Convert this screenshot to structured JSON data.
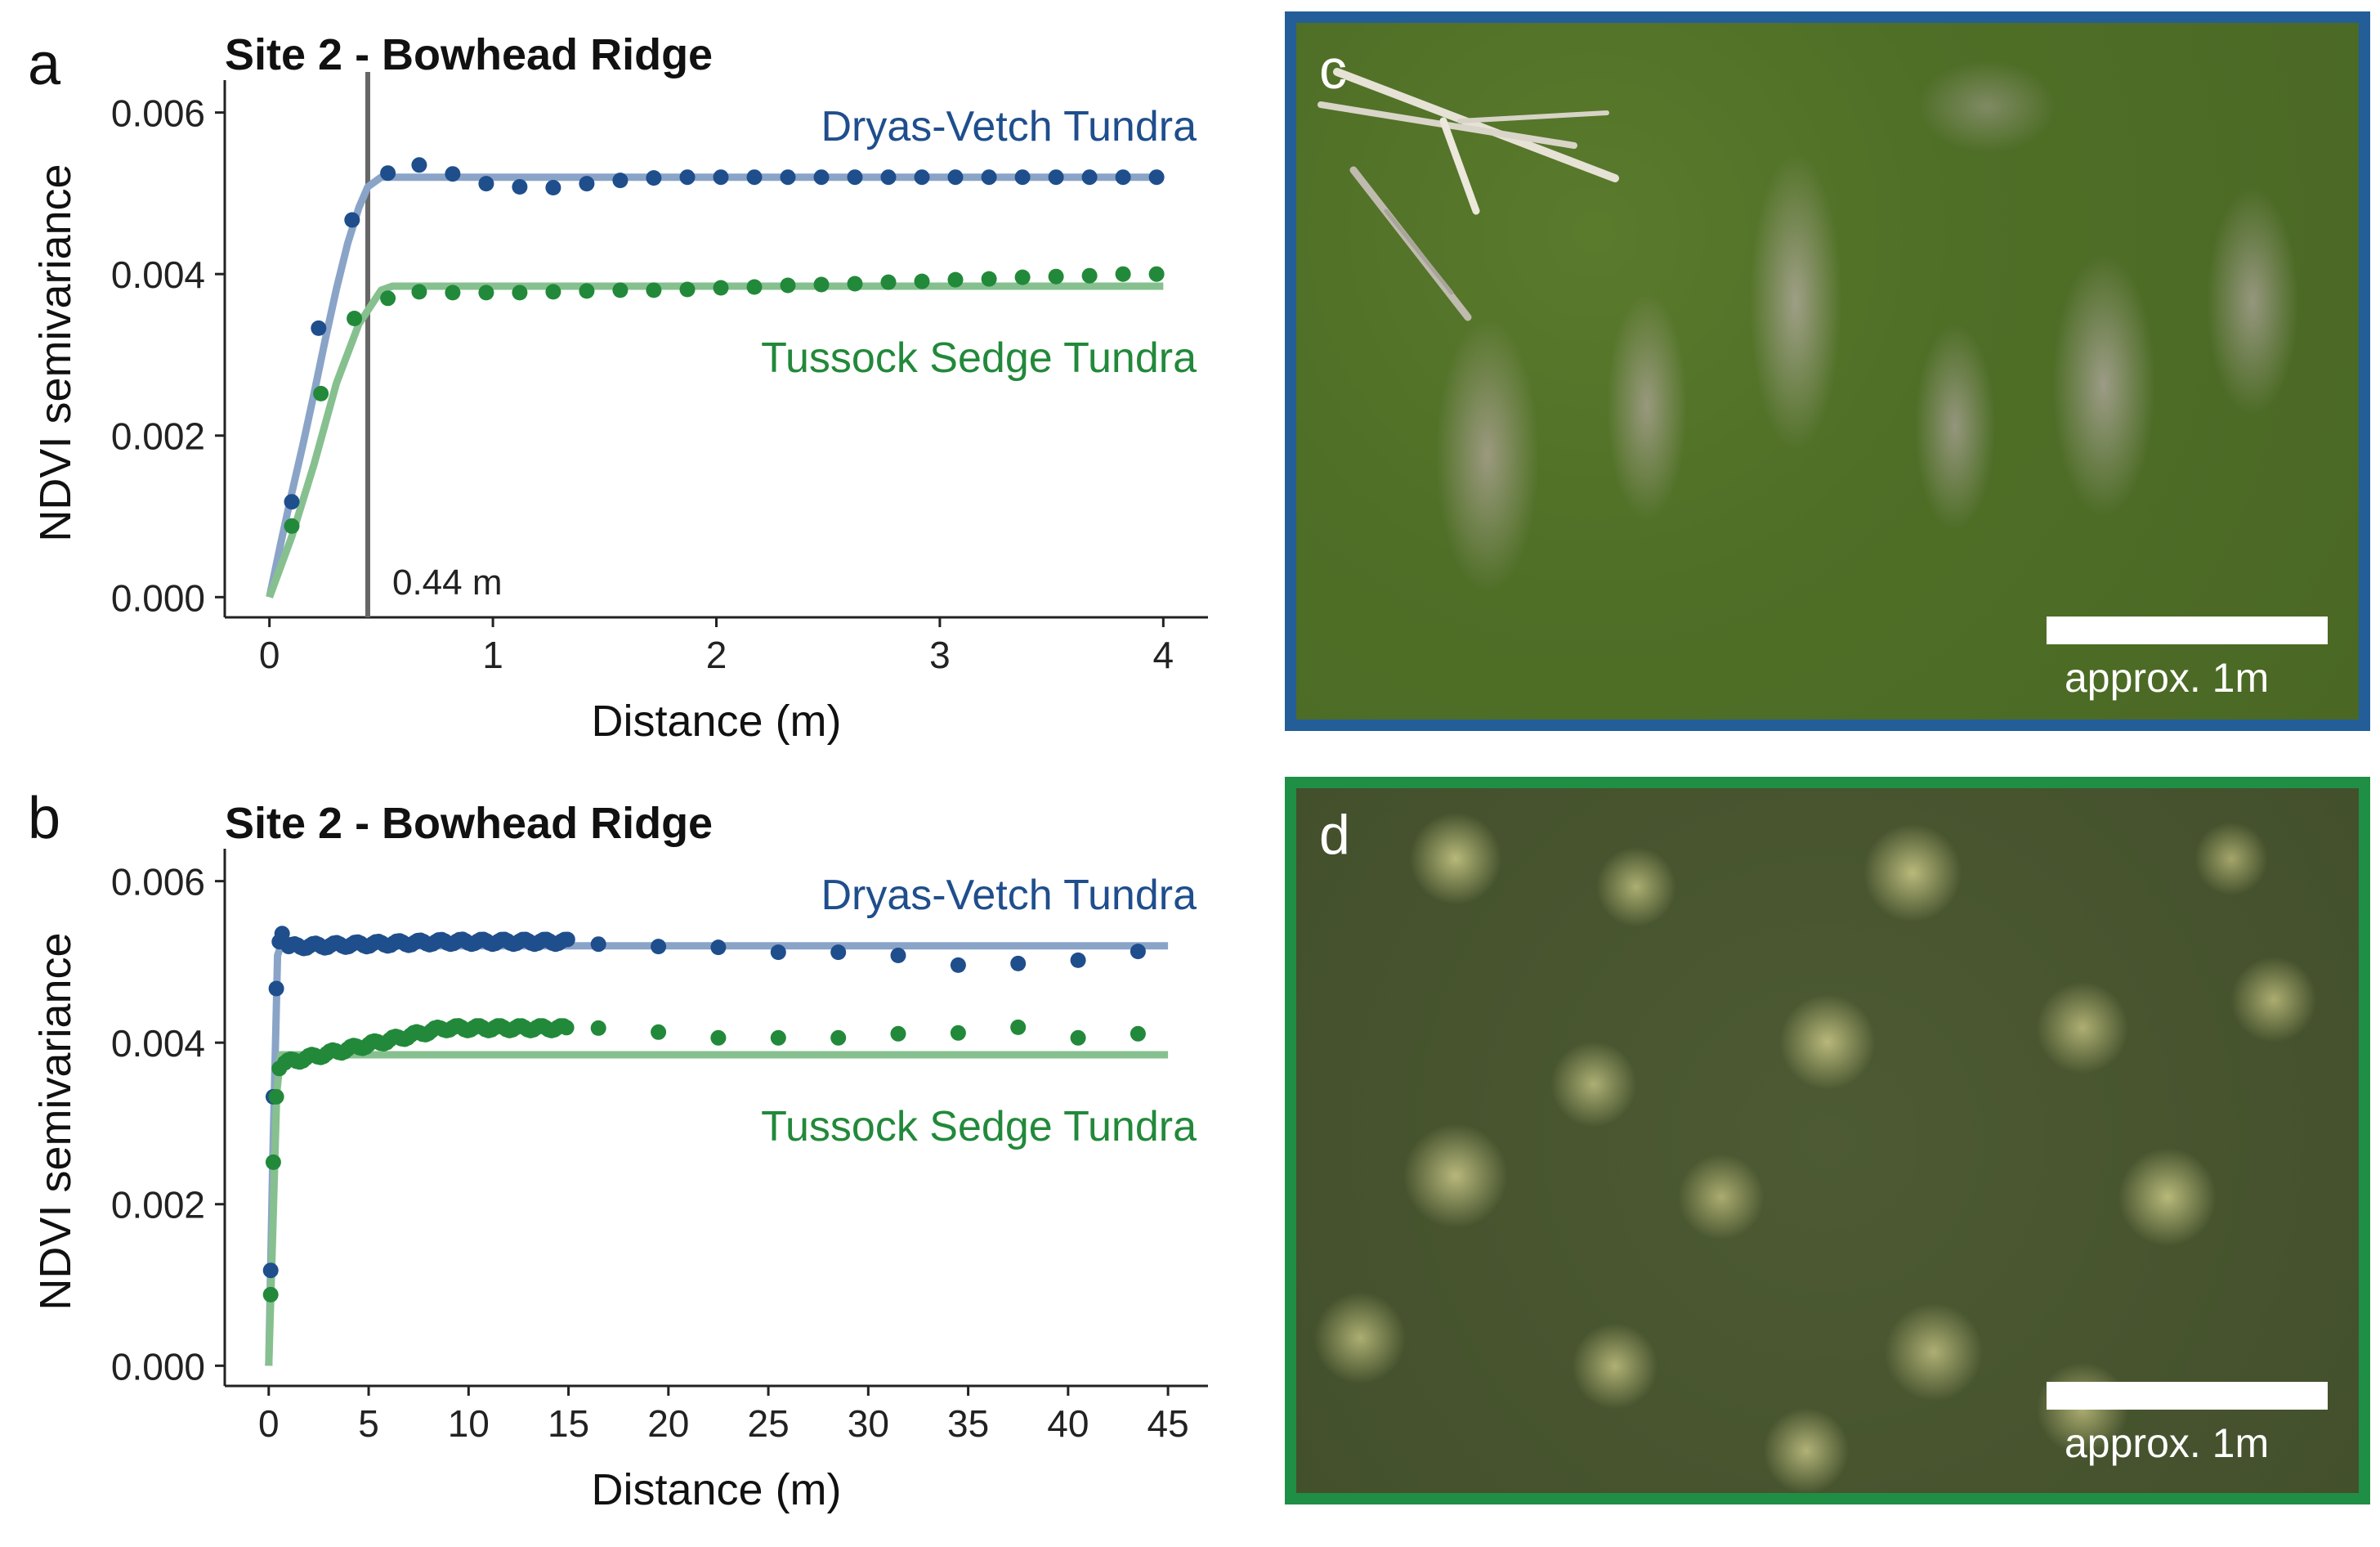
{
  "colors": {
    "dryas_points": "#1f4e8c",
    "dryas_fit": "#8aa4c8",
    "tussock_points": "#22893a",
    "tussock_fit": "#86c08f",
    "range_line": "#666666",
    "frame_c": "#245e98",
    "frame_d": "#1f8f45"
  },
  "chart_data": [
    {
      "panel": "a",
      "type": "scatter",
      "title": "Site 2 - Bowhead Ridge",
      "xlabel": "Distance (m)",
      "ylabel": "NDVI semivariance",
      "xlim": [
        -0.2,
        4.2
      ],
      "ylim": [
        -0.00025,
        0.0063
      ],
      "xticks": [
        0,
        1,
        2,
        3,
        4
      ],
      "xtick_labels": [
        "0",
        "1",
        "2",
        "3",
        "4"
      ],
      "yticks": [
        0,
        0.002,
        0.004,
        0.006
      ],
      "ytick_labels": [
        "0.000",
        "0.002",
        "0.004",
        "0.006"
      ],
      "vline": {
        "x": 0.44,
        "label": "0.44 m"
      },
      "series": [
        {
          "name": "Dryas-Vetch Tundra",
          "color_key": "dryas",
          "points": {
            "x": [
              0.1,
              0.22,
              0.37,
              0.53,
              0.67,
              0.82,
              0.97,
              1.12,
              1.27,
              1.42,
              1.57,
              1.72,
              1.87,
              2.02,
              2.17,
              2.32,
              2.47,
              2.62,
              2.77,
              2.92,
              3.07,
              3.22,
              3.37,
              3.52,
              3.67,
              3.82,
              3.97
            ],
            "y": [
              0.00118,
              0.00333,
              0.00467,
              0.00525,
              0.00535,
              0.00524,
              0.00512,
              0.00508,
              0.00507,
              0.00512,
              0.00516,
              0.00519,
              0.0052,
              0.0052,
              0.0052,
              0.0052,
              0.0052,
              0.0052,
              0.0052,
              0.0052,
              0.0052,
              0.0052,
              0.0052,
              0.0052,
              0.0052,
              0.0052,
              0.0052
            ]
          },
          "fit": {
            "x": [
              0,
              0.05,
              0.1,
              0.15,
              0.2,
              0.25,
              0.3,
              0.35,
              0.4,
              0.44,
              0.5,
              4
            ],
            "y": [
              0,
              0.00066,
              0.00129,
              0.00189,
              0.00253,
              0.00319,
              0.00382,
              0.00438,
              0.00482,
              0.00508,
              0.0052,
              0.0052
            ]
          }
        },
        {
          "name": "Tussock Sedge Tundra",
          "color_key": "tussock",
          "points": {
            "x": [
              0.1,
              0.23,
              0.38,
              0.53,
              0.67,
              0.82,
              0.97,
              1.12,
              1.27,
              1.42,
              1.57,
              1.72,
              1.87,
              2.02,
              2.17,
              2.32,
              2.47,
              2.62,
              2.77,
              2.92,
              3.07,
              3.22,
              3.37,
              3.52,
              3.67,
              3.82,
              3.97
            ],
            "y": [
              0.00088,
              0.00252,
              0.00345,
              0.0037,
              0.00378,
              0.00377,
              0.00377,
              0.00377,
              0.00378,
              0.00379,
              0.0038,
              0.0038,
              0.00381,
              0.00383,
              0.00384,
              0.00386,
              0.00387,
              0.00388,
              0.0039,
              0.00391,
              0.00393,
              0.00394,
              0.00396,
              0.00397,
              0.00398,
              0.004,
              0.004
            ]
          },
          "fit": {
            "x": [
              0,
              0.1,
              0.2,
              0.3,
              0.4,
              0.5,
              0.55,
              4
            ],
            "y": [
              0,
              0.00075,
              0.00165,
              0.00265,
              0.00338,
              0.0038,
              0.00385,
              0.00385
            ]
          }
        }
      ]
    },
    {
      "panel": "b",
      "type": "scatter",
      "title": "Site 2 - Bowhead Ridge",
      "xlabel": "Distance (m)",
      "ylabel": "NDVI semivariance",
      "xlim": [
        -2.2,
        47.0
      ],
      "ylim": [
        -0.00025,
        0.0063
      ],
      "xticks": [
        0,
        5,
        10,
        15,
        20,
        25,
        30,
        35,
        40,
        45
      ],
      "xtick_labels": [
        "0",
        "5",
        "10",
        "15",
        "20",
        "25",
        "30",
        "35",
        "40",
        "45"
      ],
      "yticks": [
        0,
        0.002,
        0.004,
        0.006
      ],
      "ytick_labels": [
        "0.000",
        "0.002",
        "0.004",
        "0.006"
      ],
      "series": [
        {
          "name": "Dryas-Vetch Tundra",
          "color_key": "dryas",
          "dense_points": {
            "x0": 1.0,
            "x1": 15.0,
            "step": 0.15,
            "base": 0.00519,
            "ripple": 3e-05,
            "rise_to": 0.00525
          },
          "points": {
            "x": [
              0.1,
              0.23,
              0.38,
              0.53,
              0.67,
              16.5,
              19.5,
              22.5,
              25.5,
              28.5,
              31.5,
              34.5,
              37.5,
              40.5,
              43.5
            ],
            "y": [
              0.00118,
              0.00333,
              0.00467,
              0.00525,
              0.00535,
              0.00522,
              0.00519,
              0.00518,
              0.00512,
              0.00512,
              0.00508,
              0.00496,
              0.00498,
              0.00502,
              0.00513
            ]
          },
          "fit": {
            "x": [
              0,
              0.2,
              0.44,
              0.6,
              45
            ],
            "y": [
              0,
              0.00253,
              0.00508,
              0.0052,
              0.0052
            ]
          }
        },
        {
          "name": "Tussock Sedge Tundra",
          "color_key": "tussock",
          "dense_points": {
            "x0": 0.8,
            "x1": 15.0,
            "step": 0.15,
            "base": 0.00375,
            "ripple": 3e-05,
            "rise_to": 0.00418
          },
          "points": {
            "x": [
              0.1,
              0.23,
              0.38,
              0.53,
              16.5,
              19.5,
              22.5,
              25.5,
              28.5,
              31.5,
              34.5,
              37.5,
              40.5,
              43.5
            ],
            "y": [
              0.00088,
              0.00252,
              0.00333,
              0.00368,
              0.00418,
              0.00413,
              0.00406,
              0.00406,
              0.00406,
              0.00411,
              0.00412,
              0.00419,
              0.00406,
              0.00411
            ]
          },
          "fit": {
            "x": [
              0,
              0.2,
              0.4,
              0.6,
              45
            ],
            "y": [
              0,
              0.00165,
              0.00338,
              0.00385,
              0.00385
            ]
          }
        }
      ]
    }
  ],
  "panels": {
    "a_letter": "a",
    "b_letter": "b",
    "c_letter": "c",
    "d_letter": "d",
    "scale_label": "approx. 1m"
  }
}
